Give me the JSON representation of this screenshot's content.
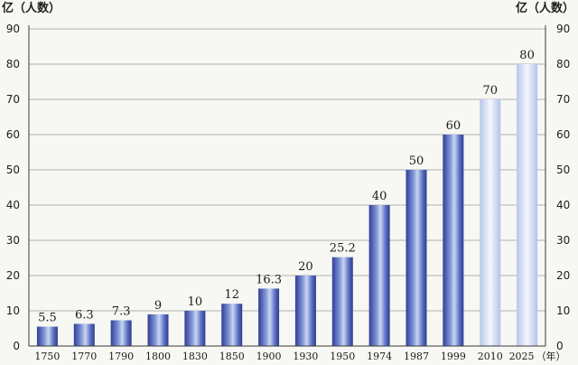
{
  "chart_data": {
    "type": "bar",
    "title": "",
    "y_unit_left": "亿（人数）",
    "y_unit_right": "亿（人数）",
    "x_unit": "（年）",
    "categories": [
      "1750",
      "1770",
      "1790",
      "1800",
      "1830",
      "1850",
      "1900",
      "1930",
      "1950",
      "1974",
      "1987",
      "1999",
      "2010",
      "2025"
    ],
    "values": [
      5.5,
      6.3,
      7.3,
      9,
      10,
      12,
      16.3,
      20,
      25.2,
      40,
      50,
      60,
      70,
      80
    ],
    "data_labels": [
      "5.5",
      "6.3",
      "7.3",
      "9",
      "10",
      "12",
      "16.3",
      "20",
      "25.2",
      "40",
      "50",
      "60",
      "70",
      "80"
    ],
    "ylim": [
      0,
      90
    ],
    "yticks": [
      0,
      10,
      20,
      30,
      40,
      50,
      60,
      70,
      80,
      90
    ],
    "grid": true,
    "legend": "none",
    "projected_categories": [
      "2010",
      "2025"
    ],
    "colors": {
      "bar_main": "#3f55b0",
      "bar_highlight": "#c9d6f2",
      "bar_projected": "#dde6f6",
      "grid": "#9a9a9a",
      "axis": "#3a3a3a",
      "background": "#f7f7f4"
    }
  }
}
